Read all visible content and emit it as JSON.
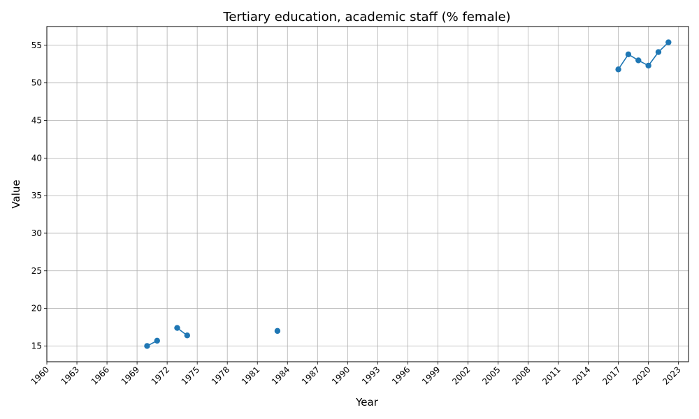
{
  "chart_data": {
    "type": "line",
    "title": "Tertiary education, academic staff (% female)",
    "xlabel": "Year",
    "ylabel": "Value",
    "xlim": [
      1960,
      2024
    ],
    "ylim": [
      12.9,
      57.5
    ],
    "grid": true,
    "x_ticks": [
      1960,
      1963,
      1966,
      1969,
      1972,
      1975,
      1978,
      1981,
      1984,
      1987,
      1990,
      1993,
      1996,
      1999,
      2002,
      2005,
      2008,
      2011,
      2014,
      2017,
      2020,
      2023
    ],
    "y_ticks": [
      15,
      20,
      25,
      30,
      35,
      40,
      45,
      50,
      55
    ],
    "series": [
      {
        "color": "#1f77b4",
        "points": [
          {
            "x": 1970,
            "y": 15.0
          },
          {
            "x": 1971,
            "y": 15.7
          },
          {
            "x": 1972,
            "y": null
          },
          {
            "x": 1973,
            "y": 17.4
          },
          {
            "x": 1974,
            "y": 16.4
          },
          {
            "x": 1975,
            "y": null
          },
          {
            "x": 1983,
            "y": 17.0
          },
          {
            "x": 1984,
            "y": null
          },
          {
            "x": 2017,
            "y": 51.8
          },
          {
            "x": 2018,
            "y": 53.8
          },
          {
            "x": 2019,
            "y": 53.0
          },
          {
            "x": 2020,
            "y": 52.3
          },
          {
            "x": 2021,
            "y": 54.1
          },
          {
            "x": 2022,
            "y": 55.4
          }
        ]
      }
    ]
  }
}
